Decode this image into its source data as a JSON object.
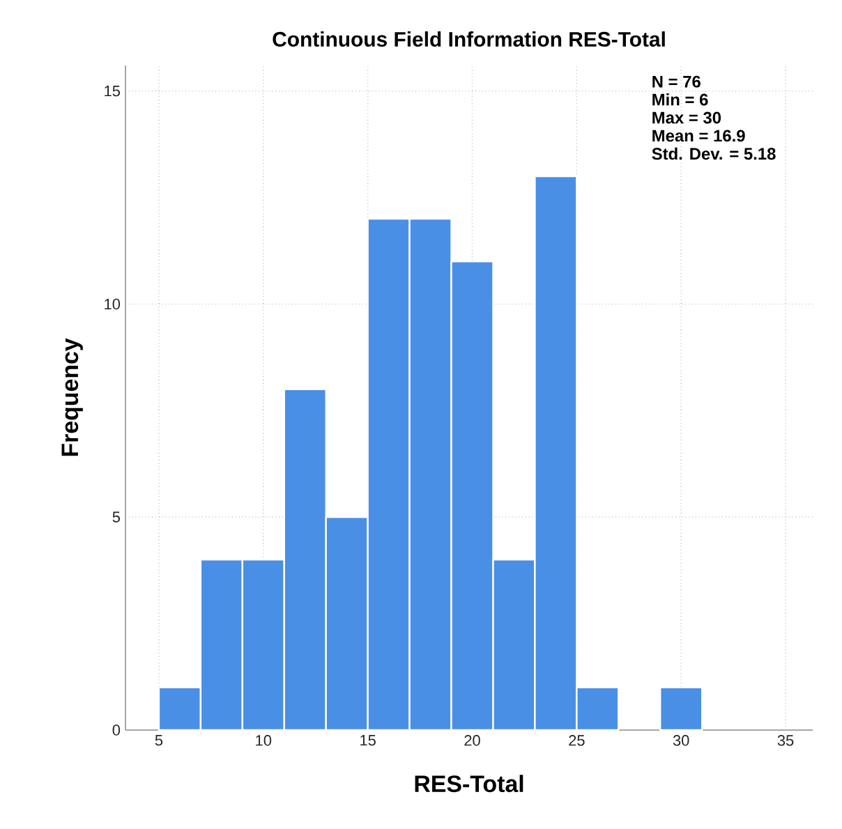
{
  "chart_data": {
    "type": "histogram",
    "title": "Continuous Field Information RES-Total",
    "xlabel": "RES-Total",
    "ylabel": "Frequency",
    "bins": [
      5,
      7,
      9,
      11,
      13,
      15,
      17,
      19,
      21,
      23,
      25,
      27,
      29,
      31
    ],
    "values": [
      1,
      4,
      4,
      8,
      5,
      12,
      12,
      11,
      4,
      13,
      1,
      0,
      1
    ],
    "color": "#4a8fe6",
    "xlim": [
      3.4,
      36.3
    ],
    "ylim": [
      0,
      15.6
    ],
    "xticks": [
      5,
      10,
      15,
      20,
      25,
      30,
      35
    ],
    "yticks": [
      0,
      5,
      10,
      15
    ],
    "grid": true,
    "annotations": [
      "N = 76",
      "Min = 6",
      "Max = 30",
      "Mean = 16.9",
      "Std. Dev. = 5.18"
    ]
  }
}
